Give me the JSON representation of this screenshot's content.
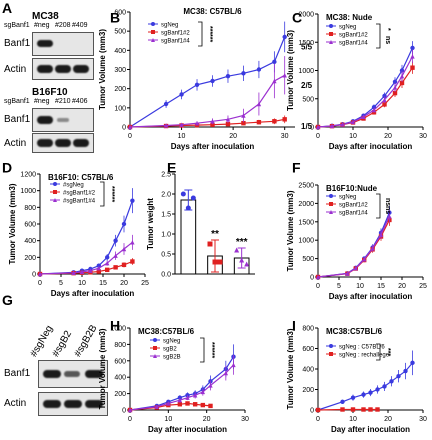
{
  "panels": {
    "A": {
      "label": "A",
      "mc38": {
        "title": "MC38",
        "lanes_label": "sgBanf1",
        "lanes": [
          "#neg",
          "#208",
          "#409"
        ],
        "rows": [
          "Banf1",
          "Actin"
        ]
      },
      "b16": {
        "title": "B16F10",
        "lanes_label": "sgBanf1",
        "lanes": [
          "#neg",
          "#210",
          "#406"
        ],
        "rows": [
          "Banf1",
          "Actin"
        ]
      }
    },
    "G": {
      "label": "G",
      "lanes": [
        "#sgNeg",
        "#sgB2",
        "#sgB2B"
      ],
      "rows": [
        "Banf1",
        "Actin"
      ]
    },
    "E": {
      "label": "E",
      "stars": [
        "**",
        "***"
      ]
    }
  },
  "chart_data": [
    {
      "id": "B",
      "panel_label": "B",
      "type": "line",
      "title": "MC38: C57BL/6",
      "xlabel": "Days after inoculation",
      "ylabel": "Tumor Volume (mm3)",
      "xlim": [
        0,
        32
      ],
      "ylim": [
        0,
        600
      ],
      "xticks": [
        0,
        10,
        20,
        30
      ],
      "yticks": [
        0,
        100,
        200,
        300,
        400,
        500,
        600
      ],
      "stars": [
        "***",
        "***"
      ],
      "annotations": [
        {
          "text": "5/5",
          "y": 420
        },
        {
          "text": "2/5",
          "y": 220
        },
        {
          "text": "1/5",
          "y": 5
        }
      ],
      "series": [
        {
          "name": "sgNeg",
          "color": "#3a3adf",
          "marker": "circle",
          "x": [
            0,
            7,
            10,
            13,
            16,
            19,
            22,
            25,
            28,
            30
          ],
          "y": [
            0,
            120,
            170,
            220,
            240,
            265,
            280,
            300,
            340,
            470
          ],
          "err": [
            0,
            20,
            25,
            30,
            30,
            35,
            40,
            45,
            55,
            80
          ]
        },
        {
          "name": "sgBanf1#2",
          "color": "#e02020",
          "marker": "square",
          "x": [
            0,
            7,
            10,
            13,
            16,
            19,
            22,
            25,
            28,
            30
          ],
          "y": [
            0,
            5,
            8,
            10,
            12,
            15,
            20,
            25,
            30,
            40
          ],
          "err": [
            0,
            3,
            4,
            5,
            6,
            8,
            10,
            12,
            15,
            20
          ]
        },
        {
          "name": "sgBanf1#4",
          "color": "#9b30d0",
          "marker": "triangle",
          "x": [
            0,
            7,
            10,
            13,
            16,
            19,
            22,
            25,
            28,
            30
          ],
          "y": [
            0,
            8,
            12,
            20,
            30,
            40,
            60,
            120,
            240,
            270
          ],
          "err": [
            0,
            4,
            6,
            10,
            15,
            20,
            35,
            60,
            90,
            100
          ]
        }
      ]
    },
    {
      "id": "C",
      "panel_label": "C",
      "type": "line",
      "title": "MC38: Nude",
      "xlabel": "Days after inoculation",
      "ylabel": "Tumor Volume (mm3)",
      "xlim": [
        0,
        30
      ],
      "ylim": [
        0,
        2000
      ],
      "xticks": [
        0,
        10,
        20,
        30
      ],
      "yticks": [
        0,
        500,
        1000,
        1500,
        2000
      ],
      "stars": [
        "*",
        "ns"
      ],
      "series": [
        {
          "name": "sgNeg",
          "color": "#3a3adf",
          "marker": "circle",
          "x": [
            0,
            4,
            7,
            10,
            13,
            16,
            19,
            22,
            24,
            27
          ],
          "y": [
            0,
            20,
            50,
            100,
            200,
            350,
            550,
            800,
            1000,
            1400
          ],
          "err": [
            0,
            5,
            10,
            20,
            30,
            50,
            60,
            80,
            100,
            120
          ]
        },
        {
          "name": "sgBanf1#2",
          "color": "#e02020",
          "marker": "square",
          "x": [
            0,
            4,
            7,
            10,
            13,
            16,
            19,
            22,
            24,
            27
          ],
          "y": [
            0,
            15,
            40,
            80,
            150,
            260,
            400,
            600,
            780,
            1050
          ],
          "err": [
            0,
            5,
            10,
            15,
            25,
            40,
            50,
            70,
            90,
            110
          ]
        },
        {
          "name": "sgBanf1#4",
          "color": "#9b30d0",
          "marker": "triangle",
          "x": [
            0,
            4,
            7,
            10,
            13,
            16,
            19,
            22,
            24,
            27
          ],
          "y": [
            0,
            18,
            45,
            90,
            180,
            300,
            480,
            700,
            900,
            1250
          ],
          "err": [
            0,
            5,
            10,
            20,
            30,
            40,
            60,
            80,
            100,
            120
          ]
        }
      ]
    },
    {
      "id": "D",
      "panel_label": "D",
      "type": "line",
      "title": "B16F10: C57BL/6",
      "xlabel": "Days after inoculation",
      "ylabel": "Tumor Volume (mm3)",
      "xlim": [
        0,
        25
      ],
      "ylim": [
        0,
        1200
      ],
      "xticks": [
        0,
        5,
        10,
        15,
        20,
        25
      ],
      "yticks": [
        0,
        200,
        400,
        600,
        800,
        1000,
        1200
      ],
      "stars": [
        "***",
        "***"
      ],
      "series": [
        {
          "name": "#sgNeg",
          "color": "#3a3adf",
          "marker": "circle",
          "x": [
            0,
            8,
            10,
            12,
            14,
            16,
            18,
            20,
            22
          ],
          "y": [
            0,
            20,
            40,
            60,
            100,
            200,
            400,
            600,
            880
          ],
          "err": [
            0,
            5,
            10,
            15,
            25,
            40,
            70,
            100,
            150
          ]
        },
        {
          "name": "#sgBanf1#2",
          "color": "#e02020",
          "marker": "square",
          "x": [
            0,
            8,
            10,
            12,
            14,
            16,
            18,
            20,
            22
          ],
          "y": [
            0,
            10,
            15,
            20,
            30,
            50,
            80,
            110,
            150
          ],
          "err": [
            0,
            5,
            5,
            8,
            10,
            15,
            20,
            30,
            40
          ]
        },
        {
          "name": "#sgBanf1#4",
          "color": "#9b30d0",
          "marker": "triangle",
          "x": [
            0,
            8,
            10,
            12,
            14,
            16,
            18,
            20,
            22
          ],
          "y": [
            0,
            15,
            25,
            40,
            70,
            130,
            220,
            300,
            380
          ],
          "err": [
            0,
            5,
            8,
            12,
            20,
            30,
            50,
            70,
            90
          ]
        }
      ]
    },
    {
      "id": "E",
      "panel_label": "E",
      "type": "bar",
      "title": "",
      "xlabel": "",
      "ylabel": "Tumor weight",
      "ylim": [
        0,
        2.5
      ],
      "yticks": [
        0.0,
        0.5,
        1.0,
        1.5,
        2.0,
        2.5
      ],
      "categories": [
        "",
        "",
        ""
      ],
      "series": [
        {
          "name": "",
          "colors": [
            "#3a3adf",
            "#e02020",
            "#9b30d0"
          ],
          "values": [
            1.85,
            0.45,
            0.4
          ],
          "err": [
            0.25,
            0.4,
            0.25
          ],
          "points": [
            [
              2.0,
              1.65,
              1.9
            ],
            [
              0.75,
              0.3,
              0.3
            ],
            [
              0.6,
              0.35,
              0.25
            ]
          ]
        }
      ]
    },
    {
      "id": "F",
      "panel_label": "F",
      "type": "line",
      "title": "B16F10:Nude",
      "xlabel": "Days after inoculation",
      "ylabel": "Tumor Volume (mm3)",
      "xlim": [
        0,
        25
      ],
      "ylim": [
        0,
        2500
      ],
      "xticks": [
        0,
        5,
        10,
        15,
        20,
        25
      ],
      "yticks": [
        0,
        500,
        1000,
        1500,
        2000,
        2500
      ],
      "stars": [
        "ns",
        "ns"
      ],
      "series": [
        {
          "name": "sgNeg",
          "color": "#3a3adf",
          "marker": "circle",
          "x": [
            0,
            7,
            9,
            11,
            13,
            15,
            17
          ],
          "y": [
            0,
            100,
            250,
            500,
            800,
            1200,
            1750
          ],
          "err": [
            0,
            20,
            40,
            60,
            90,
            120,
            180
          ]
        },
        {
          "name": "sgBanf1#2",
          "color": "#e02020",
          "marker": "square",
          "x": [
            0,
            7,
            9,
            11,
            13,
            15,
            17
          ],
          "y": [
            0,
            90,
            230,
            460,
            750,
            1100,
            1550
          ],
          "err": [
            0,
            20,
            40,
            60,
            90,
            120,
            160
          ]
        },
        {
          "name": "sgBanf1#4",
          "color": "#9b30d0",
          "marker": "triangle",
          "x": [
            0,
            7,
            9,
            11,
            13,
            15,
            17
          ],
          "y": [
            0,
            95,
            240,
            480,
            780,
            1150,
            1650
          ],
          "err": [
            0,
            20,
            40,
            60,
            90,
            120,
            170
          ]
        }
      ]
    },
    {
      "id": "H",
      "panel_label": "H",
      "type": "line",
      "title": "MC38:C57BL/6",
      "xlabel": "Day after inoculation",
      "ylabel": "Tumor Volume (mm3)",
      "xlim": [
        0,
        30
      ],
      "ylim": [
        0,
        1000
      ],
      "xticks": [
        0,
        10,
        20,
        30
      ],
      "yticks": [
        0,
        200,
        400,
        600,
        800,
        1000
      ],
      "stars": [
        "***",
        "***"
      ],
      "series": [
        {
          "name": "sgNeg",
          "color": "#3a3adf",
          "marker": "circle",
          "x": [
            0,
            7,
            10,
            13,
            15,
            17,
            19,
            21,
            25,
            27
          ],
          "y": [
            0,
            50,
            100,
            150,
            180,
            200,
            250,
            350,
            500,
            650
          ],
          "err": [
            0,
            15,
            20,
            30,
            35,
            40,
            50,
            70,
            100,
            150
          ]
        },
        {
          "name": "sgB2",
          "color": "#e02020",
          "marker": "square",
          "x": [
            0,
            7,
            10,
            13,
            15,
            17,
            19,
            21
          ],
          "y": [
            0,
            30,
            60,
            70,
            80,
            70,
            60,
            50
          ],
          "err": [
            0,
            10,
            15,
            20,
            20,
            20,
            20,
            20
          ]
        },
        {
          "name": "sgB2B",
          "color": "#9b30d0",
          "marker": "triangle",
          "x": [
            0,
            7,
            10,
            13,
            15,
            17,
            19,
            21,
            25,
            27
          ],
          "y": [
            0,
            40,
            80,
            120,
            150,
            180,
            220,
            300,
            450,
            550
          ],
          "err": [
            0,
            10,
            20,
            25,
            30,
            40,
            45,
            60,
            90,
            120
          ]
        }
      ]
    },
    {
      "id": "I",
      "panel_label": "I",
      "type": "line",
      "title": "MC38:C57BL/6",
      "xlabel": "Day after inoculation",
      "ylabel": "Tumor Volume (mm3)",
      "xlim": [
        0,
        30
      ],
      "ylim": [
        0,
        800
      ],
      "xticks": [
        0,
        10,
        20,
        30
      ],
      "yticks": [
        0,
        200,
        400,
        600,
        800
      ],
      "stars": [
        "***"
      ],
      "series": [
        {
          "name": "sgNeg : C57BL/6",
          "color": "#3a3adf",
          "marker": "circle",
          "x": [
            0,
            7,
            10,
            13,
            15,
            17,
            19,
            21,
            23,
            25,
            27
          ],
          "y": [
            0,
            80,
            120,
            150,
            170,
            200,
            230,
            280,
            330,
            380,
            460
          ],
          "err": [
            0,
            20,
            30,
            30,
            35,
            40,
            45,
            50,
            60,
            80,
            120
          ]
        },
        {
          "name": "sgNeg : rechallege",
          "color": "#e02020",
          "marker": "square",
          "x": [
            0,
            7,
            10,
            13,
            15,
            17
          ],
          "y": [
            0,
            5,
            5,
            5,
            5,
            5
          ],
          "err": [
            0,
            2,
            2,
            2,
            2,
            2
          ]
        }
      ]
    }
  ]
}
